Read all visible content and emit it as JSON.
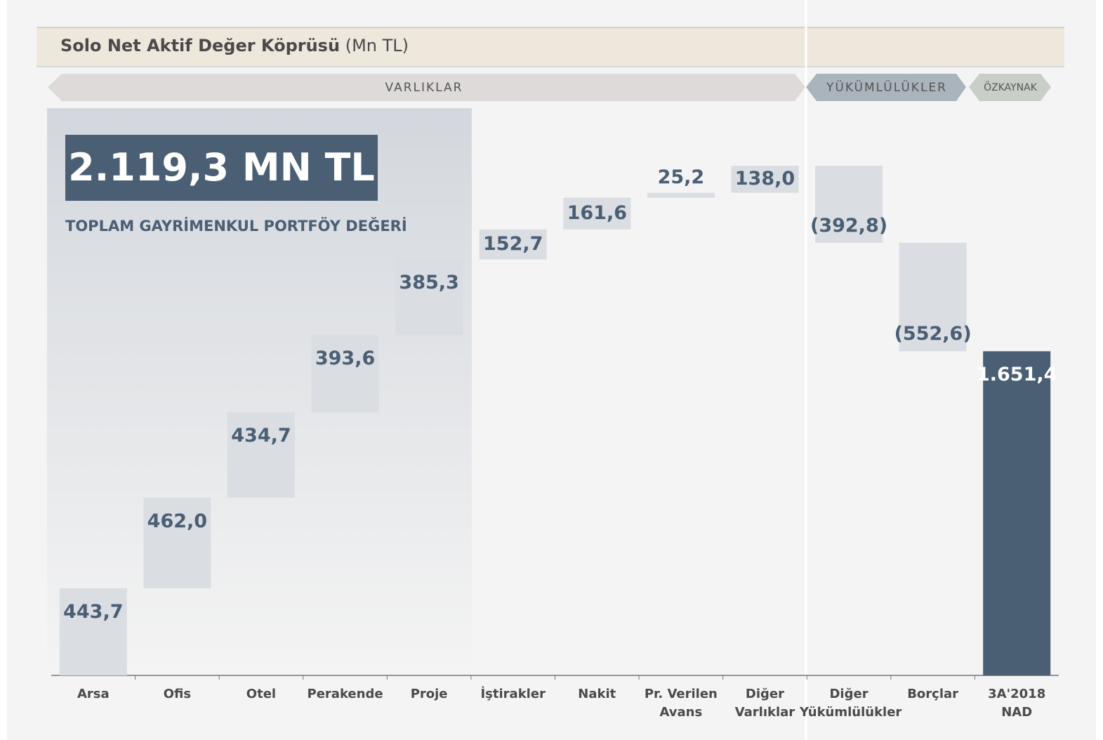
{
  "chart_data": {
    "type": "waterfall",
    "title": "Solo Net Aktif Değer Köprüsü",
    "title_unit": "(Mn TL)",
    "sections": [
      "VARLIKLAR",
      "YÜKÜMLÜLÜKLER",
      "ÖZKAYNAK"
    ],
    "highlight": {
      "value": "2.119,3 MN TL",
      "caption": "TOPLAM GAYRİMENKUL PORTFÖY DEĞERİ"
    },
    "categories": [
      "Arsa",
      "Ofis",
      "Otel",
      "Perakende",
      "Proje",
      "İştirakler",
      "Nakit",
      "Pr. Verilen\nAvans",
      "Diğer\nVarlıklar",
      "Diğer\nYükümlülükler",
      "Borçlar",
      "3A'2018\nNAD"
    ],
    "values": [
      443.7,
      462.0,
      434.7,
      393.6,
      385.3,
      152.7,
      161.6,
      25.2,
      138.0,
      -392.8,
      -552.6,
      1651.4
    ],
    "value_labels": [
      "443,7",
      "462,0",
      "434,7",
      "393,6",
      "385,3",
      "152,7",
      "161,6",
      "25,2",
      "138,0",
      "(392,8)",
      "(552,6)",
      "1.651,4"
    ],
    "color": "#dadde2",
    "total_color": "#4a5e74",
    "ylim": [
      0,
      2890
    ]
  }
}
